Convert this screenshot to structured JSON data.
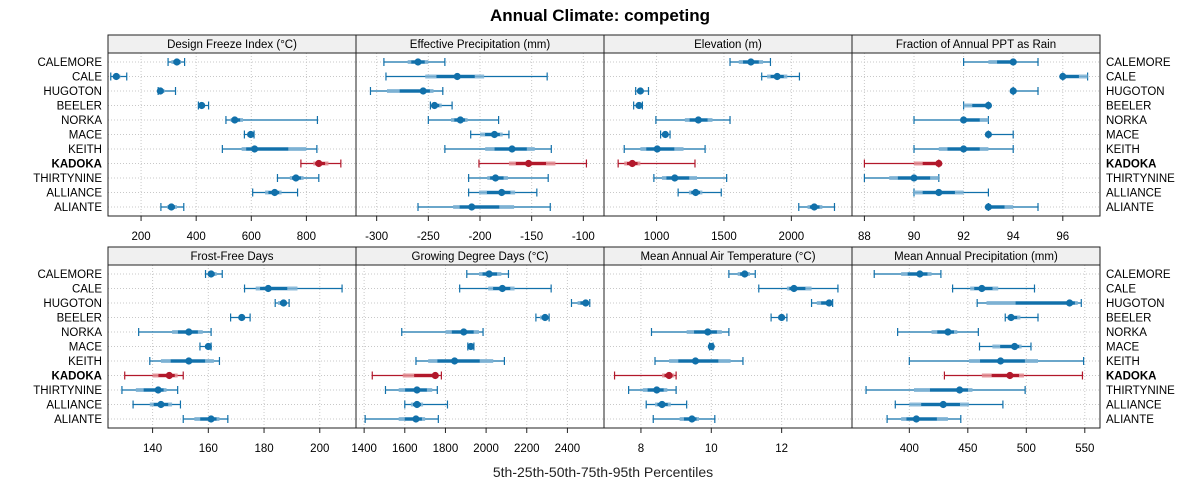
{
  "chart_data": {
    "type": "dotplot-intervals",
    "title": "Annual Climate: competing",
    "xlabel": "5th-25th-50th-75th-95th Percentiles",
    "ylabel": "",
    "legend": "none",
    "grid": true,
    "colors": {
      "default": "#1170aa",
      "default_light": "#7fb3d5",
      "highlight": "#b2182b",
      "highlight_light": "#e08a8f",
      "strip_bg": "#f0f0f0",
      "grid": "#c8c8c8"
    },
    "highlight_site": "KADOKA",
    "sites": [
      "CALEMORE",
      "CALE",
      "HUGOTON",
      "BEELER",
      "NORKA",
      "MACE",
      "KEITH",
      "KADOKA",
      "THIRTYNINE",
      "ALLIANCE",
      "ALIANTE"
    ],
    "panels": [
      {
        "name": "Design Freeze Index (°C)",
        "xlim": [
          80,
          980
        ],
        "ticks": [
          200,
          400,
          600,
          800
        ],
        "tick_labels": [
          "200",
          "400",
          "600",
          "800"
        ],
        "values": [
          [
            298,
            310,
            330,
            345,
            358
          ],
          [
            90,
            100,
            110,
            125,
            148
          ],
          [
            262,
            265,
            270,
            285,
            325
          ],
          [
            408,
            412,
            420,
            428,
            445
          ],
          [
            508,
            525,
            540,
            570,
            840
          ],
          [
            575,
            585,
            598,
            605,
            610
          ],
          [
            495,
            565,
            612,
            800,
            838
          ],
          [
            780,
            825,
            845,
            880,
            925
          ],
          [
            695,
            740,
            762,
            790,
            845
          ],
          [
            605,
            650,
            685,
            710,
            768
          ],
          [
            272,
            295,
            310,
            330,
            355
          ]
        ]
      },
      {
        "name": "Effective Precipitation (mm)",
        "xlim": [
          -320,
          -80
        ],
        "ticks": [
          -300,
          -250,
          -200,
          -150,
          -100
        ],
        "tick_labels": [
          "-300",
          "-250",
          "-200",
          "-150",
          "-100"
        ],
        "values": [
          [
            -293,
            -270,
            -260,
            -250,
            -234
          ],
          [
            -291,
            -253,
            -222,
            -196,
            -135
          ],
          [
            -306,
            -290,
            -255,
            -245,
            -236
          ],
          [
            -248,
            -247,
            -244,
            -237,
            -227
          ],
          [
            -250,
            -228,
            -219,
            -212,
            -182
          ],
          [
            -209,
            -200,
            -186,
            -178,
            -172
          ],
          [
            -234,
            -195,
            -169,
            -147,
            -131
          ],
          [
            -201,
            -172,
            -153,
            -127,
            -97
          ],
          [
            -211,
            -193,
            -185,
            -173,
            -134
          ],
          [
            -211,
            -201,
            -179,
            -166,
            -145
          ],
          [
            -260,
            -226,
            -208,
            -167,
            -132
          ]
        ]
      },
      {
        "name": "Elevation (m)",
        "xlim": [
          610,
          2450
        ],
        "ticks": [
          1000,
          1500,
          2000
        ],
        "tick_labels": [
          "1000",
          "1500",
          "2000"
        ],
        "values": [
          [
            1545,
            1610,
            1700,
            1790,
            1845
          ],
          [
            1780,
            1820,
            1895,
            1970,
            2060
          ],
          [
            845,
            860,
            880,
            900,
            940
          ],
          [
            830,
            845,
            870,
            880,
            895
          ],
          [
            995,
            1210,
            1310,
            1415,
            1545
          ],
          [
            1030,
            1045,
            1065,
            1085,
            1100
          ],
          [
            760,
            880,
            1005,
            1200,
            1360
          ],
          [
            715,
            760,
            820,
            880,
            1285
          ],
          [
            980,
            1040,
            1135,
            1300,
            1520
          ],
          [
            1160,
            1240,
            1290,
            1340,
            1480
          ],
          [
            2055,
            2120,
            2170,
            2230,
            2320
          ]
        ]
      },
      {
        "name": "Fraction of Annual PPT as Rain",
        "xlim": [
          87.5,
          97.5
        ],
        "ticks": [
          88,
          90,
          92,
          94,
          96
        ],
        "tick_labels": [
          "88",
          "90",
          "92",
          "94",
          "96"
        ],
        "values": [
          [
            92,
            93,
            94,
            94,
            95
          ],
          [
            96,
            96,
            96,
            97,
            97
          ],
          [
            94,
            94,
            94,
            94,
            95
          ],
          [
            92,
            92,
            93,
            93,
            93
          ],
          [
            90,
            92,
            92,
            93,
            93
          ],
          [
            93,
            93,
            93,
            93,
            94
          ],
          [
            90,
            91,
            92,
            93,
            94
          ],
          [
            88,
            90,
            91,
            91,
            91
          ],
          [
            88,
            89,
            90,
            91,
            91
          ],
          [
            90,
            90,
            91,
            92,
            93
          ],
          [
            93,
            93,
            93,
            94,
            95
          ]
        ]
      },
      {
        "name": "Frost-Free Days",
        "xlim": [
          124,
          213
        ],
        "ticks": [
          140,
          160,
          180,
          200
        ],
        "tick_labels": [
          "140",
          "160",
          "180",
          "200"
        ],
        "values": [
          [
            159,
            160,
            161,
            163,
            165
          ],
          [
            173,
            177,
            181.5,
            192,
            208
          ],
          [
            184,
            185,
            187,
            188,
            189
          ],
          [
            168,
            171,
            172,
            173,
            175
          ],
          [
            135,
            147,
            153,
            158,
            161
          ],
          [
            157,
            159,
            160,
            161,
            161
          ],
          [
            139,
            143,
            153,
            162,
            164
          ],
          [
            130,
            140,
            146,
            149,
            151
          ],
          [
            129,
            134,
            142,
            145,
            149
          ],
          [
            133,
            139,
            143,
            147,
            150
          ],
          [
            151,
            155,
            161,
            164,
            167
          ]
        ]
      },
      {
        "name": "Growing Degree Days (°C)",
        "xlim": [
          1360,
          2580
        ],
        "ticks": [
          1400,
          1600,
          1800,
          2000,
          2200,
          2400
        ],
        "tick_labels": [
          "1400",
          "1600",
          "1800",
          "2000",
          "2200",
          "2400"
        ],
        "values": [
          [
            1905,
            1965,
            2015,
            2075,
            2110
          ],
          [
            1870,
            2010,
            2080,
            2140,
            2320
          ],
          [
            2420,
            2450,
            2490,
            2500,
            2510
          ],
          [
            2245,
            2265,
            2290,
            2300,
            2310
          ],
          [
            1585,
            1800,
            1890,
            1965,
            1985
          ],
          [
            1910,
            1915,
            1925,
            1935,
            1940
          ],
          [
            1655,
            1715,
            1845,
            2035,
            2090
          ],
          [
            1440,
            1590,
            1750,
            1765,
            1780
          ],
          [
            1505,
            1570,
            1660,
            1735,
            1760
          ],
          [
            1600,
            1630,
            1660,
            1690,
            1810
          ],
          [
            1405,
            1570,
            1655,
            1700,
            1765
          ]
        ]
      },
      {
        "name": "Mean Annual Air Temperature (°C)",
        "xlim": [
          6.95,
          14.0
        ],
        "ticks": [
          8,
          10,
          12
        ],
        "tick_labels": [
          "8",
          "10",
          "12"
        ],
        "values": [
          [
            10.5,
            10.75,
            10.95,
            11.1,
            11.25
          ],
          [
            11.35,
            12.15,
            12.35,
            12.85,
            13.6
          ],
          [
            12.85,
            13.0,
            13.35,
            13.4,
            13.45
          ],
          [
            11.7,
            11.9,
            12.0,
            12.05,
            12.15
          ],
          [
            8.3,
            9.3,
            9.9,
            10.3,
            10.5
          ],
          [
            9.95,
            9.97,
            10.0,
            10.02,
            10.05
          ],
          [
            8.4,
            8.8,
            9.55,
            10.55,
            10.9
          ],
          [
            7.25,
            8.6,
            8.8,
            8.95,
            9.0
          ],
          [
            7.65,
            8.05,
            8.45,
            8.75,
            9.0
          ],
          [
            8.15,
            8.4,
            8.6,
            8.85,
            9.3
          ],
          [
            8.35,
            9.1,
            9.45,
            9.65,
            10.1
          ]
        ]
      },
      {
        "name": "Mean Annual Precipitation (mm)",
        "xlim": [
          351,
          563
        ],
        "ticks": [
          400,
          450,
          500,
          550
        ],
        "tick_labels": [
          "400",
          "450",
          "500",
          "550"
        ],
        "values": [
          [
            370,
            393,
            409,
            419,
            427
          ],
          [
            437,
            452,
            462,
            476,
            507
          ],
          [
            458,
            466,
            537,
            544,
            547
          ],
          [
            482,
            484,
            487,
            495,
            510
          ],
          [
            390,
            419,
            433,
            441,
            459
          ],
          [
            460,
            471,
            490,
            496,
            504
          ],
          [
            400,
            451,
            478,
            510,
            549
          ],
          [
            430,
            462,
            486,
            498,
            548
          ],
          [
            363,
            404,
            443,
            454,
            499
          ],
          [
            388,
            400,
            429,
            451,
            480
          ],
          [
            381,
            393,
            406,
            433,
            444
          ]
        ]
      }
    ]
  }
}
